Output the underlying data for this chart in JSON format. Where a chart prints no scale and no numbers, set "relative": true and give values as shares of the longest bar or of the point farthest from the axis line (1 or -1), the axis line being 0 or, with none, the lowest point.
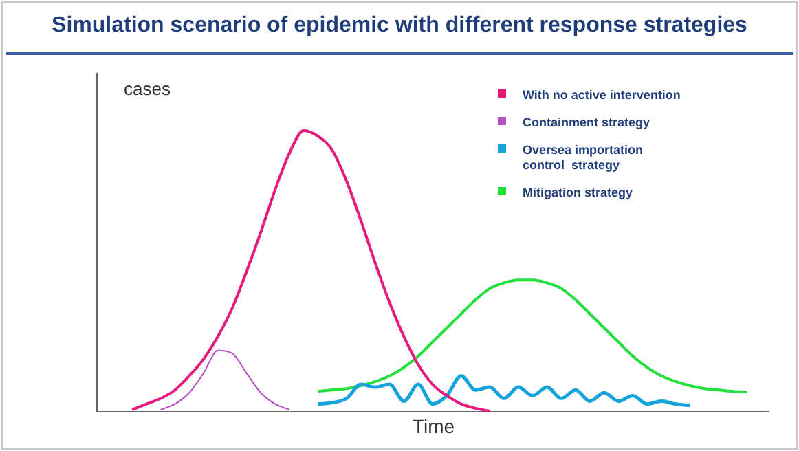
{
  "chart_data": {
    "type": "line",
    "title": "Simulation scenario of epidemic with different response strategies",
    "xlabel": "Time",
    "ylabel": "cases",
    "relative": true,
    "tick_labels": false,
    "grid": false,
    "legend": "top right",
    "marker": "none",
    "line_style": "solid",
    "categories": [
      null,
      null,
      null,
      null,
      null,
      null,
      null,
      null,
      null,
      null,
      null,
      null,
      null,
      null,
      null,
      null,
      null,
      null,
      null,
      null,
      null,
      null,
      null,
      null,
      null,
      null,
      null,
      null,
      null,
      null,
      null,
      null,
      null,
      null,
      null,
      null,
      null,
      null,
      null,
      null,
      null,
      null,
      null,
      null,
      null,
      null,
      null
    ],
    "series": [
      {
        "name": "With no active intervention",
        "color": "#e6197d",
        "values": [
          null,
          null,
          0.01,
          0.03,
          0.05,
          0.08,
          0.13,
          0.19,
          0.27,
          0.37,
          0.5,
          0.64,
          0.79,
          0.92,
          1,
          0.98,
          0.93,
          0.82,
          0.68,
          0.53,
          0.39,
          0.27,
          0.17,
          0.1,
          0.06,
          0.03,
          0.015,
          0.005,
          null,
          null,
          null,
          null,
          null,
          null,
          null,
          null,
          null,
          null,
          null,
          null,
          null,
          null,
          null,
          null,
          null,
          null,
          null
        ]
      },
      {
        "name": "Containment strategy",
        "color": "#b44fbf",
        "values": [
          null,
          null,
          null,
          null,
          0.01,
          0.03,
          0.07,
          0.14,
          0.22,
          0.21,
          0.14,
          0.07,
          0.03,
          0.01,
          null,
          null,
          null,
          null,
          null,
          null,
          null,
          null,
          null,
          null,
          null,
          null,
          null,
          null,
          null,
          null,
          null,
          null,
          null,
          null,
          null,
          null,
          null,
          null,
          null,
          null,
          null,
          null,
          null,
          null,
          null,
          null,
          null
        ]
      },
      {
        "name": "Oversea importation\ncontrol  strategy",
        "color": "#14a3dc",
        "values": [
          null,
          null,
          null,
          null,
          null,
          null,
          null,
          null,
          null,
          null,
          null,
          null,
          null,
          null,
          null,
          0.03,
          0.035,
          0.05,
          0.1,
          0.09,
          0.1,
          0.04,
          0.1,
          0.03,
          0.06,
          0.13,
          0.08,
          0.09,
          0.05,
          0.09,
          0.06,
          0.09,
          0.05,
          0.08,
          0.04,
          0.07,
          0.04,
          0.06,
          0.03,
          0.04,
          0.03,
          0.025,
          null,
          null,
          null,
          null,
          null
        ]
      },
      {
        "name": "Mitigation strategy",
        "color": "#22e03c",
        "values": [
          null,
          null,
          null,
          null,
          null,
          null,
          null,
          null,
          null,
          null,
          null,
          null,
          null,
          null,
          null,
          0.075,
          0.08,
          0.085,
          0.095,
          0.11,
          0.13,
          0.16,
          0.2,
          0.25,
          0.3,
          0.35,
          0.4,
          0.44,
          0.46,
          0.47,
          0.47,
          0.46,
          0.44,
          0.4,
          0.35,
          0.3,
          0.25,
          0.2,
          0.16,
          0.13,
          0.11,
          0.095,
          0.085,
          0.08,
          0.075,
          0.073,
          null
        ]
      }
    ]
  }
}
